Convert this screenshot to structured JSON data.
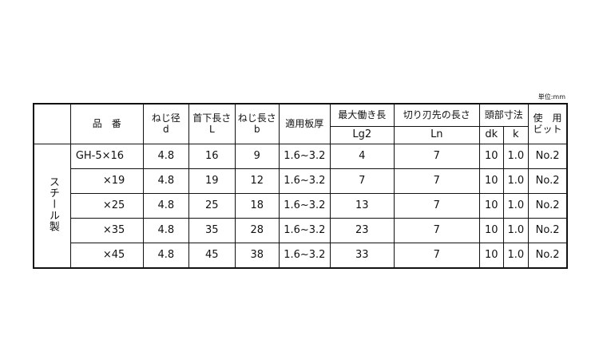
{
  "unit_label": "単位:mm",
  "headers": {
    "material": "",
    "part_no": "品　番",
    "thread_dia": "ねじ径",
    "thread_dia_sym": "d",
    "length": "首下長さ",
    "length_sym": "L",
    "thread_len": "ねじ長さ",
    "thread_len_sym": "b",
    "plate": "適用板厚",
    "max_work": "最大働き長",
    "max_work_sym": "Lg2",
    "cutting": "切り刃先の長さ",
    "cutting_sym": "Ln",
    "head": "頭部寸法",
    "head_dk": "dk",
    "head_k": "k",
    "bit_line1": "使　用",
    "bit_line2": "ビット"
  },
  "material": "スチール製",
  "rows": [
    {
      "part": "GH-5×16",
      "d": "4.8",
      "L": "16",
      "b": "9",
      "plate": "1.6~3.2",
      "lg2": "4",
      "ln": "7",
      "dk": "10",
      "k": "1.0",
      "bit": "No.2"
    },
    {
      "part": "×19",
      "d": "4.8",
      "L": "19",
      "b": "12",
      "plate": "1.6~3.2",
      "lg2": "7",
      "ln": "7",
      "dk": "10",
      "k": "1.0",
      "bit": "No.2"
    },
    {
      "part": "×25",
      "d": "4.8",
      "L": "25",
      "b": "18",
      "plate": "1.6~3.2",
      "lg2": "13",
      "ln": "7",
      "dk": "10",
      "k": "1.0",
      "bit": "No.2"
    },
    {
      "part": "×35",
      "d": "4.8",
      "L": "35",
      "b": "28",
      "plate": "1.6~3.2",
      "lg2": "23",
      "ln": "7",
      "dk": "10",
      "k": "1.0",
      "bit": "No.2"
    },
    {
      "part": "×45",
      "d": "4.8",
      "L": "45",
      "b": "38",
      "plate": "1.6~3.2",
      "lg2": "33",
      "ln": "7",
      "dk": "10",
      "k": "1.0",
      "bit": "No.2"
    }
  ]
}
